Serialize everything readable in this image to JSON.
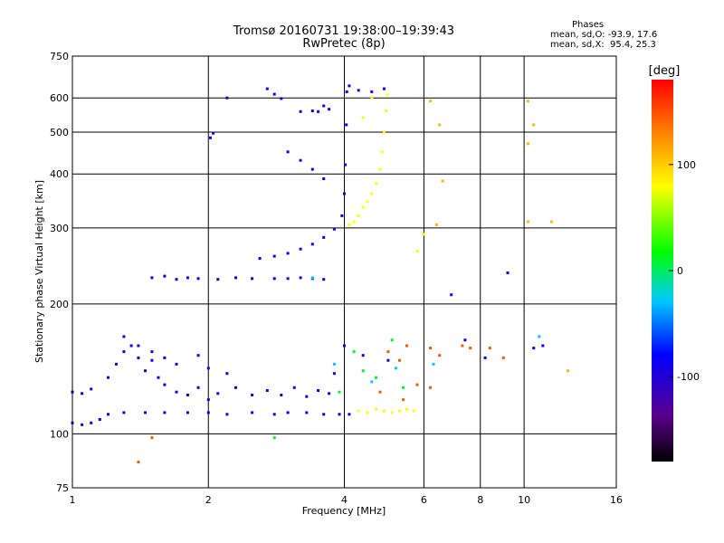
{
  "header": {
    "title_line1": "Tromsø 20160731 19:38:00–19:39:43",
    "title_line2": "RwPretec (8p)",
    "stats_heading": "Phases",
    "stats_o": "mean, sd,O: -93.9, 17.6",
    "stats_x": "mean, sd,X:  95.4, 25.3"
  },
  "chart_data": {
    "type": "scatter",
    "xlabel": "Frequency [MHz]",
    "ylabel": "Stationary phase Virtual Height [km]",
    "xscale": "log",
    "yscale": "log",
    "xlim": [
      1,
      16
    ],
    "ylim": [
      75,
      750
    ],
    "xticks": [
      1,
      2,
      4,
      6,
      8,
      10,
      16
    ],
    "yticks": [
      75,
      100,
      200,
      300,
      400,
      500,
      600,
      750
    ],
    "grid": true,
    "colorbar": {
      "label": "[deg]",
      "range": [
        -180,
        180
      ],
      "ticks": [
        100,
        0,
        -100
      ]
    },
    "series": [
      {
        "phase": -100,
        "points": [
          [
            1.0,
            106
          ],
          [
            1.05,
            105
          ],
          [
            1.1,
            106
          ],
          [
            1.15,
            108
          ],
          [
            1.2,
            111
          ],
          [
            1.3,
            112
          ],
          [
            1.45,
            112
          ],
          [
            1.6,
            112
          ],
          [
            1.8,
            112
          ],
          [
            2.0,
            112
          ],
          [
            2.2,
            111
          ],
          [
            2.5,
            112
          ],
          [
            2.8,
            111
          ],
          [
            3.0,
            112
          ],
          [
            3.3,
            112
          ],
          [
            3.6,
            111
          ],
          [
            3.9,
            111
          ],
          [
            4.1,
            111
          ],
          [
            1.0,
            125
          ],
          [
            1.05,
            124
          ],
          [
            1.1,
            127
          ],
          [
            1.2,
            135
          ],
          [
            1.25,
            145
          ],
          [
            1.3,
            155
          ],
          [
            1.35,
            160
          ],
          [
            1.4,
            150
          ],
          [
            1.45,
            140
          ],
          [
            1.5,
            148
          ],
          [
            1.55,
            135
          ],
          [
            1.6,
            130
          ],
          [
            1.7,
            125
          ],
          [
            1.8,
            123
          ],
          [
            1.9,
            128
          ],
          [
            2.0,
            120
          ],
          [
            2.1,
            124
          ],
          [
            2.3,
            128
          ],
          [
            2.5,
            123
          ],
          [
            2.7,
            126
          ],
          [
            2.9,
            123
          ],
          [
            3.1,
            128
          ],
          [
            3.3,
            122
          ],
          [
            3.5,
            126
          ],
          [
            3.7,
            124
          ],
          [
            1.3,
            168
          ],
          [
            1.4,
            160
          ],
          [
            1.5,
            155
          ],
          [
            1.6,
            150
          ],
          [
            1.7,
            145
          ],
          [
            1.9,
            152
          ],
          [
            2.0,
            142
          ],
          [
            2.2,
            138
          ],
          [
            1.5,
            230
          ],
          [
            1.6,
            232
          ],
          [
            1.7,
            228
          ],
          [
            1.8,
            230
          ],
          [
            1.9,
            229
          ],
          [
            2.1,
            228
          ],
          [
            2.3,
            230
          ],
          [
            2.5,
            229
          ],
          [
            2.8,
            229
          ],
          [
            3.0,
            229
          ],
          [
            3.2,
            230
          ],
          [
            3.4,
            229
          ],
          [
            3.6,
            228
          ],
          [
            2.6,
            255
          ],
          [
            2.8,
            258
          ],
          [
            3.0,
            262
          ],
          [
            3.2,
            268
          ],
          [
            3.4,
            275
          ],
          [
            3.6,
            285
          ],
          [
            3.8,
            298
          ],
          [
            3.95,
            320
          ],
          [
            4.0,
            360
          ],
          [
            4.02,
            420
          ],
          [
            4.04,
            520
          ],
          [
            4.05,
            620
          ],
          [
            2.02,
            485
          ],
          [
            2.05,
            497
          ],
          [
            2.2,
            600
          ],
          [
            2.7,
            630
          ],
          [
            2.8,
            612
          ],
          [
            2.9,
            598
          ],
          [
            3.2,
            558
          ],
          [
            3.4,
            560
          ],
          [
            3.5,
            558
          ],
          [
            3.7,
            565
          ],
          [
            3.6,
            575
          ],
          [
            3.0,
            450
          ],
          [
            3.2,
            430
          ],
          [
            3.4,
            410
          ],
          [
            3.6,
            390
          ],
          [
            4.1,
            640
          ],
          [
            4.3,
            625
          ],
          [
            4.6,
            620
          ],
          [
            4.9,
            630
          ],
          [
            6.9,
            210
          ],
          [
            7.4,
            165
          ],
          [
            8.2,
            150
          ],
          [
            9.2,
            236
          ],
          [
            10.5,
            158
          ],
          [
            11.0,
            160
          ],
          [
            4.0,
            160
          ],
          [
            4.4,
            152
          ],
          [
            5.0,
            148
          ],
          [
            3.8,
            138
          ]
        ]
      },
      {
        "phase": 80,
        "points": [
          [
            4.3,
            113
          ],
          [
            4.5,
            112
          ],
          [
            4.7,
            114
          ],
          [
            4.9,
            113
          ],
          [
            5.1,
            112
          ],
          [
            5.3,
            113
          ],
          [
            5.5,
            114
          ],
          [
            5.7,
            113
          ],
          [
            4.1,
            305
          ],
          [
            4.2,
            310
          ],
          [
            4.3,
            320
          ],
          [
            4.4,
            335
          ],
          [
            4.5,
            345
          ],
          [
            4.6,
            360
          ],
          [
            4.7,
            380
          ],
          [
            4.8,
            410
          ],
          [
            4.85,
            450
          ],
          [
            4.9,
            500
          ],
          [
            4.95,
            560
          ],
          [
            4.98,
            610
          ],
          [
            4.4,
            540
          ],
          [
            4.6,
            600
          ],
          [
            5.8,
            265
          ],
          [
            6.0,
            290
          ]
        ]
      },
      {
        "phase": 150,
        "points": [
          [
            5.0,
            155
          ],
          [
            5.3,
            148
          ],
          [
            5.5,
            160
          ],
          [
            6.2,
            158
          ],
          [
            6.5,
            152
          ],
          [
            7.3,
            160
          ],
          [
            7.6,
            158
          ],
          [
            8.4,
            158
          ],
          [
            9.0,
            150
          ],
          [
            5.8,
            130
          ],
          [
            6.2,
            128
          ],
          [
            5.4,
            120
          ],
          [
            4.8,
            125
          ],
          [
            1.4,
            86
          ],
          [
            1.5,
            98
          ]
        ]
      },
      {
        "phase": 110,
        "points": [
          [
            6.2,
            590
          ],
          [
            6.5,
            520
          ],
          [
            6.6,
            385
          ],
          [
            6.4,
            305
          ],
          [
            10.2,
            590
          ],
          [
            10.2,
            470
          ],
          [
            10.2,
            310
          ],
          [
            11.5,
            310
          ],
          [
            10.5,
            520
          ],
          [
            12.5,
            140
          ]
        ]
      },
      {
        "phase": 10,
        "points": [
          [
            4.2,
            155
          ],
          [
            4.4,
            140
          ],
          [
            4.7,
            135
          ],
          [
            5.1,
            165
          ],
          [
            5.4,
            128
          ],
          [
            3.9,
            125
          ],
          [
            2.8,
            98
          ]
        ]
      },
      {
        "phase": -30,
        "points": [
          [
            3.8,
            145
          ],
          [
            4.6,
            132
          ],
          [
            5.2,
            142
          ],
          [
            6.3,
            145
          ],
          [
            10.8,
            168
          ],
          [
            3.4,
            230
          ]
        ]
      }
    ]
  }
}
